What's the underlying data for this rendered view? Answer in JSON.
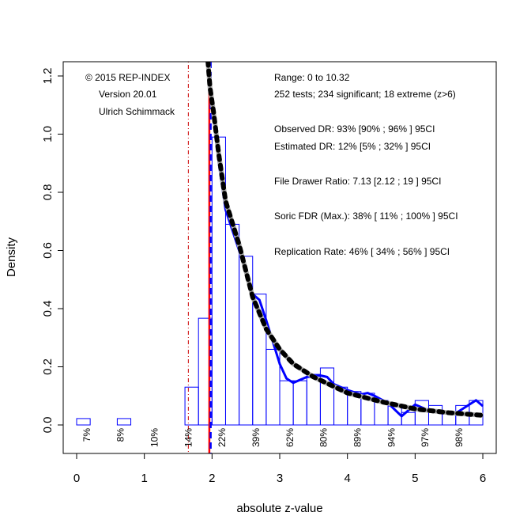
{
  "chart_data": {
    "type": "bar",
    "xlabel": "absolute z-value",
    "ylabel": "Density",
    "xlim": [
      0,
      6
    ],
    "ylim": [
      -0.1,
      1.25
    ],
    "x_ticks": [
      "0",
      "1",
      "2",
      "3",
      "4",
      "5",
      "6"
    ],
    "y_ticks": [
      "0.0",
      "0.2",
      "0.4",
      "0.6",
      "0.8",
      "1.0",
      "1.2"
    ],
    "grid": false,
    "histogram": {
      "bin_width": 0.2,
      "bin_starts": [
        0,
        0.2,
        0.4,
        0.6,
        0.8,
        1.0,
        1.2,
        1.4,
        1.6,
        1.8,
        2.0,
        2.2,
        2.4,
        2.6,
        2.8,
        3.0,
        3.2,
        3.4,
        3.6,
        3.8,
        4.0,
        4.2,
        4.4,
        4.6,
        4.8,
        5.0,
        5.2,
        5.4,
        5.6,
        5.8
      ],
      "density": [
        0.022,
        0,
        0,
        0.022,
        0,
        0,
        0,
        0,
        0.13,
        0.367,
        0.99,
        0.69,
        0.58,
        0.45,
        0.26,
        0.152,
        0.152,
        0.174,
        0.196,
        0.13,
        0.115,
        0.109,
        0.084,
        0.065,
        0.043,
        0.084,
        0.067,
        0.04,
        0.067,
        0.084
      ],
      "color": "#0000ff"
    },
    "model_curve": {
      "x": [
        1.94,
        1.97,
        2.02,
        2.1,
        2.2,
        2.4,
        2.6,
        2.8,
        3.0,
        3.2,
        3.5,
        4.0,
        4.5,
        5.0,
        5.5,
        6.0
      ],
      "y": [
        1.25,
        1.16,
        1.08,
        0.93,
        0.77,
        0.62,
        0.44,
        0.33,
        0.26,
        0.21,
        0.165,
        0.11,
        0.08,
        0.055,
        0.042,
        0.033
      ],
      "color": "#aaaaaa",
      "dash_color": "#000000"
    },
    "density_curve": {
      "x": [
        2.0,
        2.1,
        2.2,
        2.4,
        2.6,
        2.7,
        2.8,
        3.0,
        3.1,
        3.2,
        3.4,
        3.6,
        3.7,
        3.8,
        4.0,
        4.2,
        4.3,
        4.4,
        4.6,
        4.8,
        5.0,
        5.2,
        5.4,
        5.6,
        5.8,
        5.9,
        6.0
      ],
      "y": [
        1.1,
        0.9,
        0.74,
        0.6,
        0.45,
        0.43,
        0.36,
        0.21,
        0.16,
        0.145,
        0.165,
        0.17,
        0.165,
        0.14,
        0.12,
        0.105,
        0.11,
        0.1,
        0.075,
        0.03,
        0.07,
        0.05,
        0.04,
        0.04,
        0.07,
        0.085,
        0.065
      ],
      "color": "#0000ff"
    },
    "vlines": [
      {
        "x": 1.96,
        "color": "#ff0000",
        "style": "solid"
      },
      {
        "x": 1.98,
        "color": "#0000ff",
        "style": "dashed"
      },
      {
        "x": 1.65,
        "color": "#cc0000",
        "style": "dotdash"
      }
    ],
    "percent_labels": {
      "x": [
        0.15,
        0.65,
        1.15,
        1.65,
        2.15,
        2.65,
        3.15,
        3.65,
        4.15,
        4.65,
        5.15,
        5.65
      ],
      "labels": [
        "7%",
        "8%",
        "10%",
        "14%",
        "22%",
        "39%",
        "62%",
        "80%",
        "89%",
        "94%",
        "97%",
        "98%"
      ]
    },
    "annotations_left": [
      "© 2015 REP-INDEX",
      "Version 20.01",
      "Ulrich Schimmack"
    ],
    "annotations_right": [
      "Range: 0 to 10.32",
      "252 tests; 234 significant; 18 extreme (z>6)",
      "Observed DR: 93% [90% ; 96% ] 95CI",
      "Estimated DR: 12% [5% ; 32% ] 95CI",
      "File Drawer Ratio: 7.13 [2.12 ; 19 ] 95CI",
      "Soric FDR (Max.): 38% [ 11% ; 100% ] 95CI",
      "Replication Rate: 46% [ 34% ; 56% ] 95CI"
    ]
  }
}
